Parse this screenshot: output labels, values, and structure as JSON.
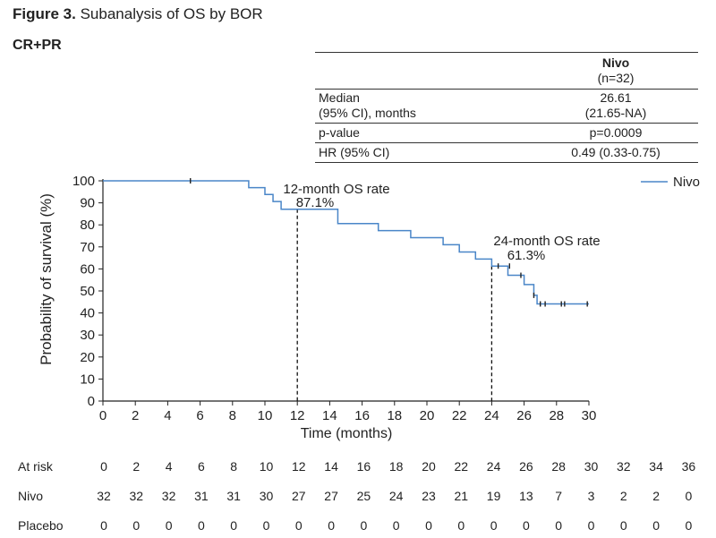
{
  "figure": {
    "label": "Figure 3.",
    "title": "Subanalysis of OS by BOR",
    "subgroup": "CR+PR"
  },
  "summary_table": {
    "group_name": "Nivo",
    "group_n": "(n=32)",
    "rows": [
      {
        "label_line1": "Median",
        "label_line2": "(95% CI), months",
        "value_line1": "26.61",
        "value_line2": "(21.65-NA)"
      },
      {
        "label": "p-value",
        "value": "p=0.0009"
      },
      {
        "label": "HR (95% CI)",
        "value": "0.49 (0.33-0.75)"
      }
    ]
  },
  "chart_data": {
    "type": "line",
    "xlabel": "Time (months)",
    "ylabel": "Probability of survival (%)",
    "xlim": [
      0,
      30
    ],
    "ylim": [
      0,
      100
    ],
    "x_ticks": [
      0,
      2,
      4,
      6,
      8,
      10,
      12,
      14,
      16,
      18,
      20,
      22,
      24,
      26,
      28,
      30
    ],
    "y_ticks": [
      0,
      10,
      20,
      30,
      40,
      50,
      60,
      70,
      80,
      90,
      100
    ],
    "legend": "top-right",
    "grid": false,
    "series": [
      {
        "name": "Nivo",
        "color": "#4a86c8",
        "step": true,
        "x": [
          0,
          9,
          10,
          10.5,
          11,
          12,
          14.5,
          17,
          19,
          21,
          22,
          23,
          24,
          25,
          26,
          26.6,
          26.8,
          30
        ],
        "y": [
          100,
          96.9,
          93.8,
          90.6,
          87.1,
          87.1,
          80.6,
          77.4,
          74.2,
          71.0,
          67.7,
          64.5,
          61.3,
          57.1,
          52.9,
          48.0,
          44.1,
          44.1
        ],
        "censor_x": [
          5.4,
          24.4,
          25.1,
          25.8,
          26.6,
          27.0,
          27.3,
          28.3,
          28.5,
          29.9
        ],
        "censor_y": [
          100,
          61.3,
          61.3,
          57.1,
          48.0,
          44.1,
          44.1,
          44.1,
          44.1,
          44.1
        ]
      }
    ],
    "annotations": [
      {
        "text_line1": "12-month OS rate",
        "text_line2": "87.1%",
        "x": 12,
        "y": 87.1
      },
      {
        "text_line1": "24-month OS rate",
        "text_line2": "61.3%",
        "x": 24,
        "y": 61.3
      }
    ]
  },
  "at_risk": {
    "header": "At risk",
    "times": [
      "0",
      "2",
      "4",
      "6",
      "8",
      "10",
      "12",
      "14",
      "16",
      "18",
      "20",
      "22",
      "24",
      "26",
      "28",
      "30",
      "32",
      "34",
      "36"
    ],
    "rows": [
      {
        "label": "Nivo",
        "values": [
          "32",
          "32",
          "32",
          "31",
          "31",
          "30",
          "27",
          "27",
          "25",
          "24",
          "23",
          "21",
          "19",
          "13",
          "7",
          "3",
          "2",
          "2",
          "0"
        ]
      },
      {
        "label": "Placebo",
        "values": [
          "0",
          "0",
          "0",
          "0",
          "0",
          "0",
          "0",
          "0",
          "0",
          "0",
          "0",
          "0",
          "0",
          "0",
          "0",
          "0",
          "0",
          "0",
          "0"
        ]
      }
    ]
  }
}
